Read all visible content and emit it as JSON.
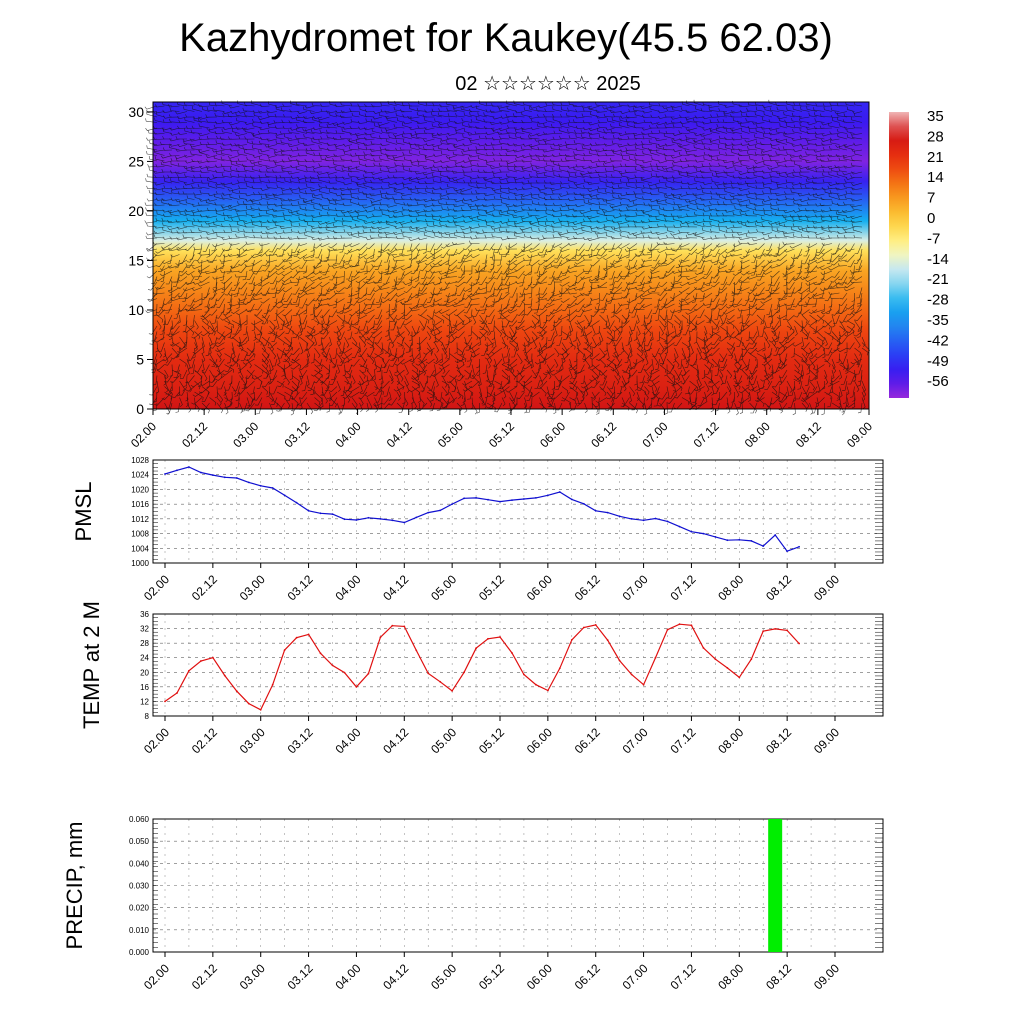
{
  "title": "Kazhydromet for Kaukey(45.5 62.03)",
  "subtitle": "02 ☆☆☆☆☆☆ 2025",
  "colors": {
    "pmsl_line": "#1010d0",
    "temp_line": "#e01010",
    "precip_bar": "#00ee00"
  },
  "chart_data": [
    {
      "id": "cross-section",
      "type": "heatmap",
      "title": "",
      "xlabel": "",
      "ylabel": "",
      "x_tick_labels": [
        "02.00",
        "02.12",
        "03.00",
        "03.12",
        "04.00",
        "04.12",
        "05.00",
        "05.12",
        "06.00",
        "06.12",
        "07.00",
        "07.12",
        "08.00",
        "08.12",
        "09.00"
      ],
      "y_ticks": [
        0,
        5,
        10,
        15,
        20,
        25,
        30
      ],
      "ylim": [
        0,
        31
      ],
      "colorbar_labels": [
        "35",
        "28",
        "21",
        "14",
        "7",
        "0",
        "-7",
        "-14",
        "-21",
        "-28",
        "-35",
        "-42",
        "-49",
        "-56"
      ],
      "value_range": [
        -60,
        38
      ],
      "overlay": "wind barbs",
      "temperature_profile": [
        {
          "height": 0,
          "value": 30
        },
        {
          "height": 2,
          "value": 27
        },
        {
          "height": 5,
          "value": 24
        },
        {
          "height": 8,
          "value": 19
        },
        {
          "height": 10,
          "value": 15
        },
        {
          "height": 12,
          "value": 11
        },
        {
          "height": 14,
          "value": 7
        },
        {
          "height": 16,
          "value": -3
        },
        {
          "height": 17,
          "value": -14
        },
        {
          "height": 19,
          "value": -28
        },
        {
          "height": 21,
          "value": -40
        },
        {
          "height": 23,
          "value": -50
        },
        {
          "height": 25,
          "value": -58
        },
        {
          "height": 27,
          "value": -55
        },
        {
          "height": 29,
          "value": -51
        },
        {
          "height": 31,
          "value": -49
        }
      ]
    },
    {
      "id": "pmsl",
      "type": "line",
      "ylabel": "PMSL",
      "x_tick_labels": [
        "02.00",
        "02.12",
        "03.00",
        "03.12",
        "04.00",
        "04.12",
        "05.00",
        "05.12",
        "06.00",
        "06.12",
        "07.00",
        "07.12",
        "08.00",
        "08.12",
        "09.00"
      ],
      "y_ticks": [
        "1000",
        "1004",
        "1008",
        "1012",
        "1016",
        "1020",
        "1024",
        "1028"
      ],
      "ylim": [
        1000,
        1028
      ],
      "x": [
        0,
        3,
        6,
        9,
        12,
        15,
        18,
        21,
        24,
        27,
        30,
        33,
        36,
        39,
        42,
        45,
        48,
        51,
        54,
        57,
        60,
        63,
        66,
        69,
        72,
        75,
        78,
        81,
        84,
        87,
        90,
        93,
        96,
        99,
        102,
        105,
        108,
        111,
        114,
        117,
        120,
        123,
        126,
        129,
        132,
        135,
        138,
        141,
        144,
        147,
        150,
        153,
        156,
        159
      ],
      "values": [
        1024.2,
        1025.2,
        1026.1,
        1024.6,
        1023.9,
        1023.3,
        1023.1,
        1021.9,
        1021.0,
        1020.4,
        1018.4,
        1016.4,
        1014.2,
        1013.5,
        1013.3,
        1011.9,
        1011.7,
        1012.3,
        1012.0,
        1011.6,
        1011.0,
        1012.4,
        1013.7,
        1014.3,
        1016.0,
        1017.6,
        1017.7,
        1017.2,
        1016.7,
        1017.1,
        1017.4,
        1017.7,
        1018.4,
        1019.3,
        1017.3,
        1016.1,
        1014.2,
        1013.7,
        1012.7,
        1012.0,
        1011.6,
        1012.1,
        1011.3,
        1009.9,
        1008.5,
        1008.0,
        1007.1,
        1006.2,
        1006.3,
        1006.0,
        1004.6,
        1007.6,
        1003.2,
        1004.4
      ]
    },
    {
      "id": "temp2m",
      "type": "line",
      "ylabel": "TEMP at 2 M",
      "x_tick_labels": [
        "02.00",
        "02.12",
        "03.00",
        "03.12",
        "04.00",
        "04.12",
        "05.00",
        "05.12",
        "06.00",
        "06.12",
        "07.00",
        "07.12",
        "08.00",
        "08.12",
        "09.00"
      ],
      "y_ticks": [
        "8",
        "12",
        "16",
        "20",
        "24",
        "28",
        "32",
        "36"
      ],
      "ylim": [
        8,
        36
      ],
      "x": [
        0,
        3,
        6,
        9,
        12,
        15,
        18,
        21,
        24,
        27,
        30,
        33,
        36,
        39,
        42,
        45,
        48,
        51,
        54,
        57,
        60,
        63,
        66,
        69,
        72,
        75,
        78,
        81,
        84,
        87,
        90,
        93,
        96,
        99,
        102,
        105,
        108,
        111,
        114,
        117,
        120,
        123,
        126,
        129,
        132,
        135,
        138,
        141,
        144,
        147,
        150,
        153,
        156,
        159
      ],
      "values": [
        12.0,
        14.3,
        20.4,
        23.1,
        24.0,
        19.1,
        14.8,
        11.4,
        9.7,
        16.6,
        26.1,
        29.5,
        30.4,
        25.2,
        21.9,
        19.9,
        16.0,
        19.6,
        29.6,
        32.8,
        32.6,
        26.0,
        19.7,
        17.4,
        14.9,
        20.0,
        26.6,
        29.2,
        29.7,
        25.3,
        19.4,
        16.6,
        15.0,
        21.1,
        28.9,
        32.3,
        33.0,
        28.8,
        23.2,
        19.4,
        16.6,
        24.0,
        31.7,
        33.2,
        32.9,
        26.7,
        23.6,
        21.2,
        18.6,
        23.6,
        31.3,
        31.9,
        31.5,
        27.9
      ]
    },
    {
      "id": "precip",
      "type": "bar",
      "ylabel": "PRECIP, mm",
      "x_tick_labels": [
        "02.00",
        "02.12",
        "03.00",
        "03.12",
        "04.00",
        "04.12",
        "05.00",
        "05.12",
        "06.00",
        "06.12",
        "07.00",
        "07.12",
        "08.00",
        "08.12",
        "09.00"
      ],
      "y_ticks": [
        "0.000",
        "0.010",
        "0.020",
        "0.030",
        "0.040",
        "0.050",
        "0.060"
      ],
      "ylim": [
        0,
        0.06
      ],
      "x": [
        153
      ],
      "values": [
        0.06
      ]
    }
  ]
}
